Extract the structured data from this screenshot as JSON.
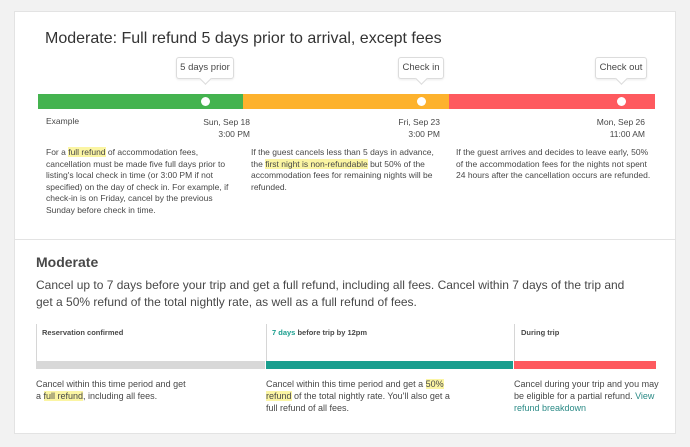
{
  "top": {
    "title": "Moderate: Full refund 5 days prior to arrival, except fees",
    "tooltips": [
      "5 days prior",
      "Check in",
      "Check out"
    ],
    "example_label": "Example",
    "colors": {
      "green": "#44b34f",
      "yellow": "#fdb22d",
      "red": "#fe5a5f"
    },
    "dates": [
      {
        "day": "Sun, Sep 18",
        "time": "3:00 PM"
      },
      {
        "day": "Fri, Sep 23",
        "time": "3:00 PM"
      },
      {
        "day": "Mon, Sep 26",
        "time": "11:00 AM"
      }
    ],
    "col1": {
      "pre": "For a ",
      "hl": "full refund",
      "post": " of accommodation fees, cancellation must be made five full days prior to listing's local check in time (or 3:00 PM if not specified) on the day of check in. For example, if check-in is on Friday, cancel by the previous Sunday before check in time."
    },
    "col2": {
      "pre": "If the guest cancels less than 5 days in advance, the ",
      "hl": "first night is non-refundable",
      "post": " but 50% of the accommodation fees for remaining nights will be refunded."
    },
    "col3": {
      "text": "If the guest arrives and decides to leave early, 50% of the accommodation fees for the nights not spent 24 hours after the cancellation occurs are refunded."
    }
  },
  "bottom": {
    "title": "Moderate",
    "summary": "Cancel up to 7 days before your trip and get a full refund, including all fees. Cancel within 7 days of the trip and get a 50% refund of the total nightly rate, as well as a full refund of fees.",
    "phases": {
      "p1": "Reservation confirmed",
      "p2_hl": "7 days",
      "p2_rest": " before trip by 12pm",
      "p3": "During trip"
    },
    "colors": {
      "gray": "#d8d8d8",
      "teal": "#199e8e",
      "red": "#fe5a5f"
    },
    "d1": {
      "pre": "Cancel within this time period and get a ",
      "hl": "full refund",
      "post": ", including all fees."
    },
    "d2": {
      "pre": "Cancel within this time period and get a ",
      "hl": "50% refund",
      "post": " of the total nightly rate. You'll also get a full refund of all fees."
    },
    "d3": {
      "pre": "Cancel during your trip and you may be eligible for a partial refund. ",
      "link": "View refund breakdown"
    }
  }
}
